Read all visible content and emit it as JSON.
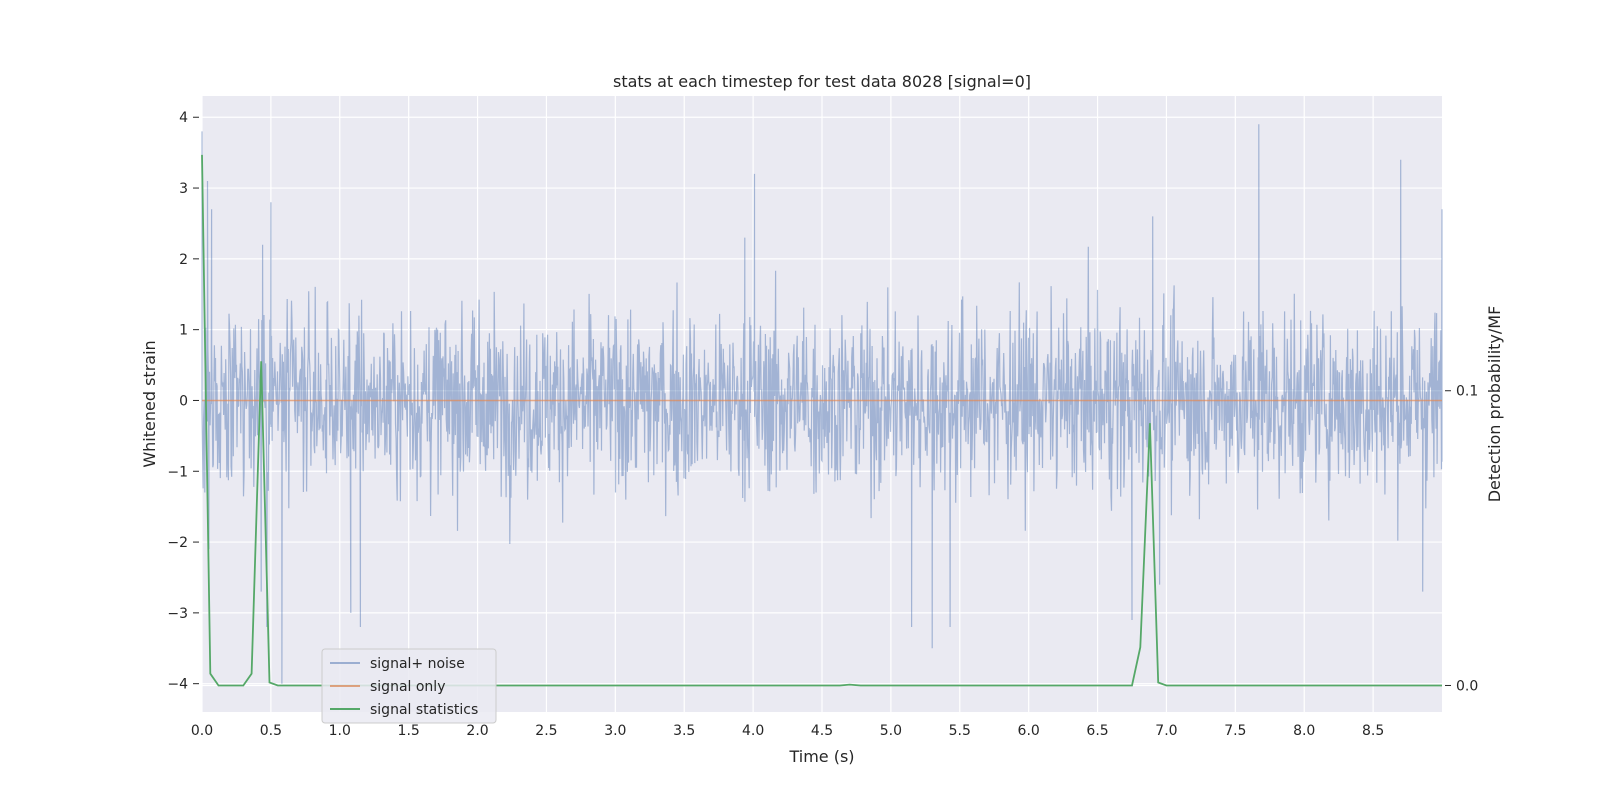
{
  "chart_data": {
    "type": "line",
    "title": "stats at each timestep for test data 8028 [signal=0]",
    "xlabel": "Time (s)",
    "ylabel": "Whitened strain",
    "y2label": "Detection probability/MF",
    "xlim": [
      0.0,
      9.0
    ],
    "ylim": [
      -4.4,
      4.3
    ],
    "y2lim": [
      -0.009,
      0.2
    ],
    "xticks": [
      "0.0",
      "0.5",
      "1.0",
      "1.5",
      "2.0",
      "2.5",
      "3.0",
      "3.5",
      "4.0",
      "4.5",
      "5.0",
      "5.5",
      "6.0",
      "6.5",
      "7.0",
      "7.5",
      "8.0",
      "8.5"
    ],
    "yticks": [
      "4",
      "3",
      "2",
      "1",
      "0",
      "−1",
      "−2",
      "−3",
      "−4"
    ],
    "y2ticks": [
      "0.1",
      "0.0"
    ],
    "grid": true,
    "legend_position": "lower-left",
    "series": [
      {
        "name": "signal+ noise",
        "color": "#4c72b0",
        "note_values": "dense noise, roughly -2.5 to 2.5 with peaks near 3.9 and -4.0",
        "x": [
          0.0,
          0.02,
          0.04,
          0.05,
          0.07,
          0.43,
          0.44,
          0.47,
          0.5,
          0.58,
          1.08,
          1.15,
          3.94,
          4.01,
          5.15,
          5.3,
          5.43,
          6.75,
          6.9,
          6.95,
          7.67,
          8.7,
          8.86,
          9.0
        ],
        "y": [
          3.8,
          -1.3,
          3.1,
          -2.1,
          2.7,
          -2.7,
          2.2,
          -3.2,
          2.8,
          -4.0,
          -3.0,
          -3.2,
          2.3,
          3.2,
          -3.2,
          -3.5,
          -3.2,
          -3.1,
          2.6,
          -2.6,
          3.9,
          3.4,
          -2.7,
          2.7
        ]
      },
      {
        "name": "signal only",
        "color": "#dd8452",
        "x": [
          0.0,
          9.0
        ],
        "y": [
          0.0,
          0.0
        ]
      },
      {
        "name": "signal statistics",
        "color": "#55a868",
        "axis": "right",
        "x": [
          0.0,
          0.06,
          0.12,
          0.18,
          0.24,
          0.3,
          0.36,
          0.43,
          0.49,
          0.55,
          0.61,
          4.63,
          4.7,
          4.78,
          6.75,
          6.81,
          6.88,
          6.94,
          7.0,
          9.0
        ],
        "y": [
          0.18,
          0.004,
          0.0,
          0.0,
          0.0,
          0.0,
          0.004,
          0.11,
          0.001,
          0.0,
          0.0,
          0.0,
          0.0003,
          0.0,
          0.0,
          0.013,
          0.089,
          0.001,
          0.0,
          0.0
        ]
      }
    ]
  }
}
